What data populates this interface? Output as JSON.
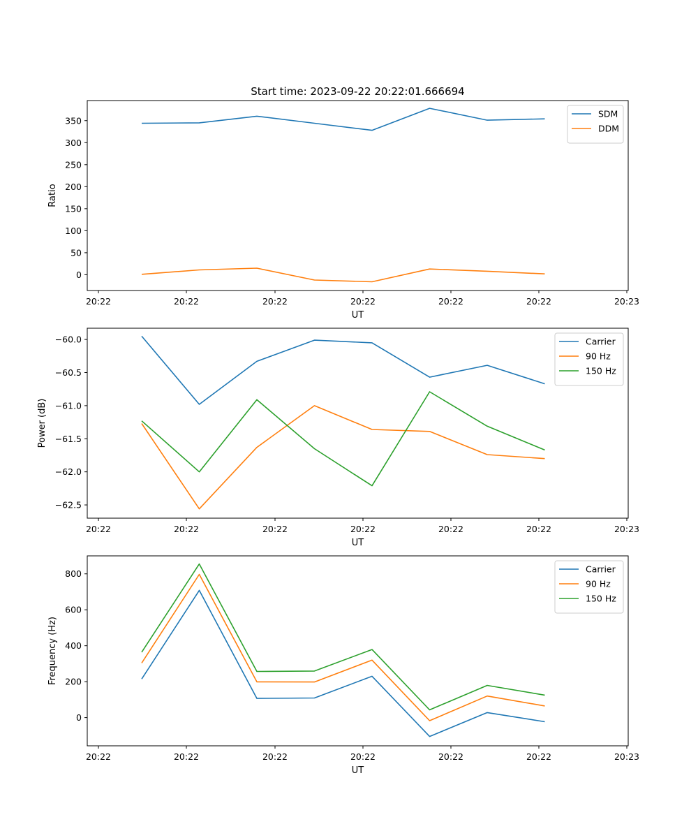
{
  "title": "Start time: 2023-09-22 20:22:01.666694",
  "chart_data": [
    {
      "type": "line",
      "title": "Start time: 2023-09-22 20:22:01.666694",
      "xlabel": "UT",
      "ylabel": "Ratio",
      "x_ticks": [
        "20:22",
        "20:22",
        "20:22",
        "20:22",
        "20:22",
        "20:22",
        "20:23"
      ],
      "y_ticks": [
        0,
        50,
        100,
        150,
        200,
        250,
        300,
        350
      ],
      "ylim": [
        -35.8,
        395.6
      ],
      "legend": "top-right",
      "series": [
        {
          "name": "SDM",
          "color": "#1f77b4",
          "values": [
            344,
            345,
            360,
            344,
            328,
            378,
            351,
            354
          ]
        },
        {
          "name": "DDM",
          "color": "#ff7f0e",
          "values": [
            1,
            11,
            15,
            -12,
            -16,
            13,
            8,
            2
          ]
        }
      ]
    },
    {
      "type": "line",
      "xlabel": "UT",
      "ylabel": "Power (dB)",
      "x_ticks": [
        "20:22",
        "20:22",
        "20:22",
        "20:22",
        "20:22",
        "20:22",
        "20:23"
      ],
      "y_ticks": [
        -60.0,
        -60.5,
        -61.0,
        -61.5,
        -62.0,
        -62.5
      ],
      "ylim": [
        -62.7,
        -59.83
      ],
      "legend": "top-right",
      "series": [
        {
          "name": "Carrier",
          "color": "#1f77b4",
          "values": [
            -59.95,
            -60.98,
            -60.33,
            -60.01,
            -60.05,
            -60.57,
            -60.39,
            -60.67
          ]
        },
        {
          "name": "90 Hz",
          "color": "#ff7f0e",
          "values": [
            -61.27,
            -62.56,
            -61.63,
            -61.0,
            -61.36,
            -61.39,
            -61.74,
            -61.8
          ]
        },
        {
          "name": "150 Hz",
          "color": "#2ca02c",
          "values": [
            -61.23,
            -62.0,
            -60.91,
            -61.65,
            -62.21,
            -60.79,
            -61.31,
            -61.67
          ]
        }
      ]
    },
    {
      "type": "line",
      "xlabel": "UT",
      "ylabel": "Frequency (Hz)",
      "x_ticks": [
        "20:22",
        "20:22",
        "20:22",
        "20:22",
        "20:22",
        "20:22",
        "20:23"
      ],
      "y_ticks": [
        0,
        200,
        400,
        600,
        800
      ],
      "ylim": [
        -157,
        900
      ],
      "legend": "top-right",
      "series": [
        {
          "name": "Carrier",
          "color": "#1f77b4",
          "values": [
            215,
            708,
            107,
            109,
            230,
            -105,
            28,
            -23
          ]
        },
        {
          "name": "90 Hz",
          "color": "#ff7f0e",
          "values": [
            304,
            797,
            199,
            198,
            320,
            -17,
            120,
            65
          ]
        },
        {
          "name": "150 Hz",
          "color": "#2ca02c",
          "values": [
            364,
            855,
            257,
            259,
            379,
            43,
            179,
            125
          ]
        }
      ]
    }
  ]
}
